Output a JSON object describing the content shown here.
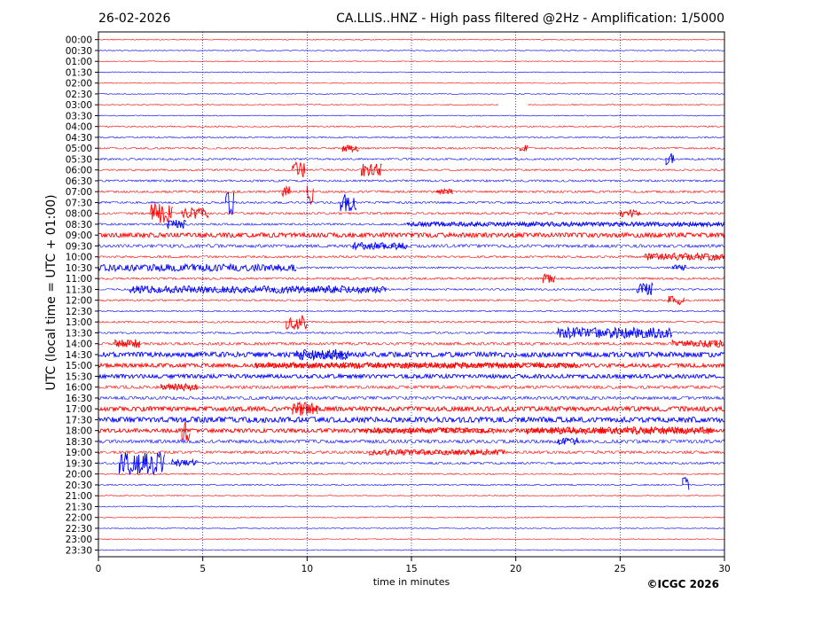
{
  "header": {
    "date": "26-02-2026",
    "title": "CA.LLIS..HNZ - High pass filtered @2Hz - Amplification: 1/5000"
  },
  "footer": {
    "copyright": "©ICGC 2026"
  },
  "colors": {
    "red": "#ff0000",
    "blue": "#0000ff",
    "grid": "#000080"
  },
  "chart_data": {
    "type": "line",
    "title": "CA.LLIS..HNZ - High pass filtered @2Hz - Amplification: 1/5000",
    "xlabel": "time in minutes",
    "ylabel": "UTC (local time = UTC + 01:00)",
    "xlim": [
      0,
      30
    ],
    "xticks": [
      0,
      5,
      10,
      15,
      20,
      25,
      30
    ],
    "vertical_gridlines_at": [
      5,
      10,
      15,
      20,
      25
    ],
    "row_labels": [
      "00:00",
      "00:30",
      "01:00",
      "01:30",
      "02:00",
      "02:30",
      "03:00",
      "03:30",
      "04:00",
      "04:30",
      "05:00",
      "05:30",
      "06:00",
      "06:30",
      "07:00",
      "07:30",
      "08:00",
      "08:30",
      "09:00",
      "09:30",
      "10:00",
      "10:30",
      "11:00",
      "11:30",
      "12:00",
      "12:30",
      "13:00",
      "13:30",
      "14:00",
      "14:30",
      "15:00",
      "15:30",
      "16:00",
      "16:30",
      "17:00",
      "17:30",
      "18:00",
      "18:30",
      "19:00",
      "19:30",
      "20:00",
      "20:30",
      "21:00",
      "21:30",
      "22:00",
      "22:30",
      "23:00",
      "23:30"
    ],
    "row_colors": "alternating red (even rows) and blue (odd rows)",
    "segments": [
      {
        "row": 0,
        "from": 0,
        "to": 30,
        "amp": 0.5
      },
      {
        "row": 1,
        "from": 0,
        "to": 30,
        "amp": 0.5
      },
      {
        "row": 2,
        "from": 0,
        "to": 30,
        "amp": 0.5
      },
      {
        "row": 3,
        "from": 0,
        "to": 30,
        "amp": 0.5
      },
      {
        "row": 4,
        "from": 0,
        "to": 30,
        "amp": 0.5
      },
      {
        "row": 5,
        "from": 0,
        "to": 30,
        "amp": 0.5
      },
      {
        "row": 6,
        "from": 0,
        "to": 19.2,
        "amp": 0.6
      },
      {
        "row": 6,
        "from": 20.6,
        "to": 30,
        "amp": 0.6
      },
      {
        "row": 7,
        "from": 0,
        "to": 30,
        "amp": 0.5
      },
      {
        "row": 8,
        "from": 0,
        "to": 30,
        "amp": 0.8
      },
      {
        "row": 9,
        "from": 0,
        "to": 30,
        "amp": 0.8
      },
      {
        "row": 10,
        "from": 0,
        "to": 30,
        "amp": 1.0
      },
      {
        "row": 10,
        "from": 11.7,
        "to": 12.5,
        "amp": 4
      },
      {
        "row": 10,
        "from": 20.2,
        "to": 20.6,
        "amp": 4
      },
      {
        "row": 11,
        "from": 0,
        "to": 30,
        "amp": 1.0
      },
      {
        "row": 11,
        "from": 27.2,
        "to": 27.6,
        "amp": 7
      },
      {
        "row": 12,
        "from": 0,
        "to": 30,
        "amp": 1.0
      },
      {
        "row": 12,
        "from": 9.3,
        "to": 9.9,
        "amp": 9
      },
      {
        "row": 12,
        "from": 12.6,
        "to": 13.6,
        "amp": 7
      },
      {
        "row": 13,
        "from": 0,
        "to": 30,
        "amp": 1.2
      },
      {
        "row": 14,
        "from": 0,
        "to": 30,
        "amp": 1.3
      },
      {
        "row": 14,
        "from": 8.8,
        "to": 9.2,
        "amp": 6
      },
      {
        "row": 14,
        "from": 10.0,
        "to": 10.3,
        "amp": 14
      },
      {
        "row": 14,
        "from": 16.2,
        "to": 17.0,
        "amp": 3
      },
      {
        "row": 15,
        "from": 0,
        "to": 30,
        "amp": 1.2
      },
      {
        "row": 15,
        "from": 6.1,
        "to": 6.5,
        "amp": 14
      },
      {
        "row": 15,
        "from": 11.6,
        "to": 12.4,
        "amp": 10
      },
      {
        "row": 16,
        "from": 0,
        "to": 30,
        "amp": 1.3
      },
      {
        "row": 16,
        "from": 2.5,
        "to": 3.6,
        "amp": 11
      },
      {
        "row": 16,
        "from": 4.0,
        "to": 5.3,
        "amp": 6
      },
      {
        "row": 16,
        "from": 25.0,
        "to": 26.0,
        "amp": 4
      },
      {
        "row": 17,
        "from": 0,
        "to": 30,
        "amp": 1.2
      },
      {
        "row": 17,
        "from": 3.3,
        "to": 4.2,
        "amp": 5
      },
      {
        "row": 17,
        "from": 14.8,
        "to": 30,
        "amp": 2.5
      },
      {
        "row": 18,
        "from": 0,
        "to": 30,
        "amp": 2.6
      },
      {
        "row": 19,
        "from": 0,
        "to": 30,
        "amp": 1.8
      },
      {
        "row": 19,
        "from": 12.2,
        "to": 14.8,
        "amp": 4
      },
      {
        "row": 20,
        "from": 0,
        "to": 30,
        "amp": 1.2
      },
      {
        "row": 20,
        "from": 26.2,
        "to": 30,
        "amp": 4
      },
      {
        "row": 21,
        "from": 0,
        "to": 9.5,
        "amp": 4
      },
      {
        "row": 21,
        "from": 9.5,
        "to": 30,
        "amp": 1.0
      },
      {
        "row": 21,
        "from": 27.5,
        "to": 28.2,
        "amp": 3
      },
      {
        "row": 22,
        "from": 0,
        "to": 30,
        "amp": 1.2
      },
      {
        "row": 22,
        "from": 21.3,
        "to": 21.9,
        "amp": 5
      },
      {
        "row": 23,
        "from": 0,
        "to": 30,
        "amp": 1.0
      },
      {
        "row": 23,
        "from": 1.5,
        "to": 13.8,
        "amp": 4
      },
      {
        "row": 23,
        "from": 25.8,
        "to": 26.6,
        "amp": 7
      },
      {
        "row": 24,
        "from": 0,
        "to": 30,
        "amp": 1.0
      },
      {
        "row": 24,
        "from": 27.3,
        "to": 28.1,
        "amp": 5
      },
      {
        "row": 25,
        "from": 0,
        "to": 30,
        "amp": 0.8
      },
      {
        "row": 26,
        "from": 0,
        "to": 30,
        "amp": 1.0
      },
      {
        "row": 26,
        "from": 9.0,
        "to": 10.1,
        "amp": 9
      },
      {
        "row": 27,
        "from": 0,
        "to": 30,
        "amp": 1.0
      },
      {
        "row": 27,
        "from": 22.0,
        "to": 27.5,
        "amp": 6
      },
      {
        "row": 28,
        "from": 0,
        "to": 30,
        "amp": 1.6
      },
      {
        "row": 28,
        "from": 0.8,
        "to": 2.0,
        "amp": 5
      },
      {
        "row": 28,
        "from": 27.5,
        "to": 30,
        "amp": 4
      },
      {
        "row": 29,
        "from": 0,
        "to": 30,
        "amp": 2.8
      },
      {
        "row": 29,
        "from": 9.5,
        "to": 12.0,
        "amp": 6
      },
      {
        "row": 30,
        "from": 0,
        "to": 30,
        "amp": 2.2
      },
      {
        "row": 30,
        "from": 7.5,
        "to": 23.0,
        "amp": 3.2
      },
      {
        "row": 31,
        "from": 0,
        "to": 30,
        "amp": 2.2
      },
      {
        "row": 32,
        "from": 0,
        "to": 30,
        "amp": 1.8
      },
      {
        "row": 32,
        "from": 3.0,
        "to": 4.8,
        "amp": 4
      },
      {
        "row": 33,
        "from": 0,
        "to": 30,
        "amp": 1.8
      },
      {
        "row": 34,
        "from": 0,
        "to": 30,
        "amp": 2.6
      },
      {
        "row": 34,
        "from": 9.3,
        "to": 10.5,
        "amp": 8
      },
      {
        "row": 35,
        "from": 0,
        "to": 30,
        "amp": 3.0
      },
      {
        "row": 36,
        "from": 0,
        "to": 30,
        "amp": 2.2
      },
      {
        "row": 36,
        "from": 4.0,
        "to": 4.4,
        "amp": 12
      },
      {
        "row": 36,
        "from": 12.5,
        "to": 19.0,
        "amp": 3.2
      },
      {
        "row": 36,
        "from": 20.5,
        "to": 29.5,
        "amp": 4
      },
      {
        "row": 37,
        "from": 0,
        "to": 30,
        "amp": 2.0
      },
      {
        "row": 37,
        "from": 22.0,
        "to": 23.0,
        "amp": 4
      },
      {
        "row": 38,
        "from": 0,
        "to": 30,
        "amp": 1.6
      },
      {
        "row": 38,
        "from": 13.0,
        "to": 19.5,
        "amp": 3.2
      },
      {
        "row": 39,
        "from": 0,
        "to": 30,
        "amp": 1.2
      },
      {
        "row": 39,
        "from": 1.0,
        "to": 3.2,
        "amp": 13
      },
      {
        "row": 39,
        "from": 3.5,
        "to": 4.8,
        "amp": 4
      },
      {
        "row": 40,
        "from": 0,
        "to": 30,
        "amp": 0.8
      },
      {
        "row": 41,
        "from": 0,
        "to": 30,
        "amp": 0.8
      },
      {
        "row": 41,
        "from": 28.0,
        "to": 28.3,
        "amp": 9
      },
      {
        "row": 42,
        "from": 0,
        "to": 30,
        "amp": 0.6
      },
      {
        "row": 43,
        "from": 0,
        "to": 30,
        "amp": 0.6
      },
      {
        "row": 44,
        "from": 0,
        "to": 30,
        "amp": 0.6
      },
      {
        "row": 45,
        "from": 0,
        "to": 30,
        "amp": 0.5
      },
      {
        "row": 46,
        "from": 0,
        "to": 30,
        "amp": 0.5
      },
      {
        "row": 47,
        "from": 0,
        "to": 30,
        "amp": 0.5
      }
    ]
  }
}
